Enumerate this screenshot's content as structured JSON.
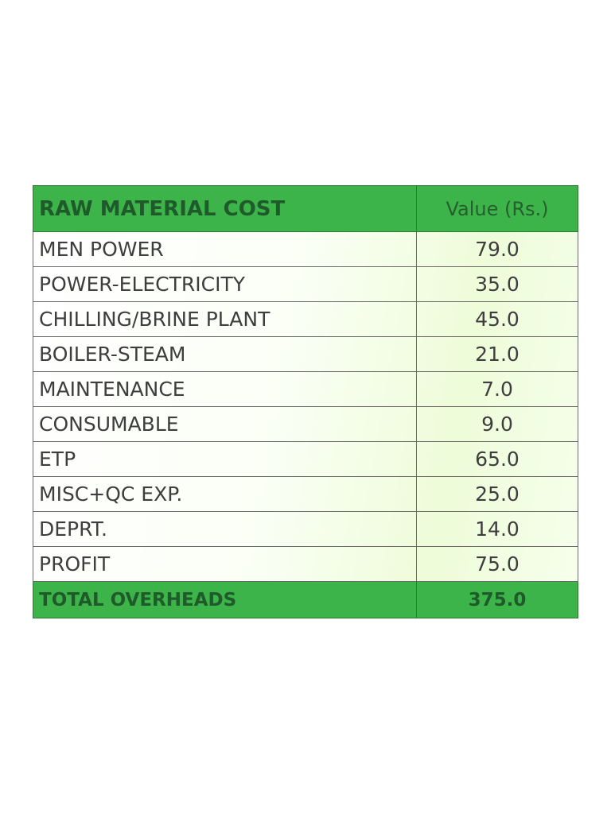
{
  "table": {
    "header": [
      "RAW MATERIAL COST",
      "Value (Rs.)"
    ],
    "rows": [
      [
        "MEN POWER",
        "79.0"
      ],
      [
        "POWER-ELECTRICITY",
        "35.0"
      ],
      [
        "CHILLING/BRINE PLANT",
        "45.0"
      ],
      [
        "BOILER-STEAM",
        "21.0"
      ],
      [
        "MAINTENANCE",
        "7.0"
      ],
      [
        "CONSUMABLE",
        "9.0"
      ],
      [
        "ETP",
        "65.0"
      ],
      [
        "MISC+QC EXP.",
        "25.0"
      ],
      [
        "DEPRT.",
        "14.0"
      ],
      [
        "PROFIT",
        "75.0"
      ]
    ],
    "footer": [
      "TOTAL OVERHEADS",
      "375.0"
    ]
  }
}
